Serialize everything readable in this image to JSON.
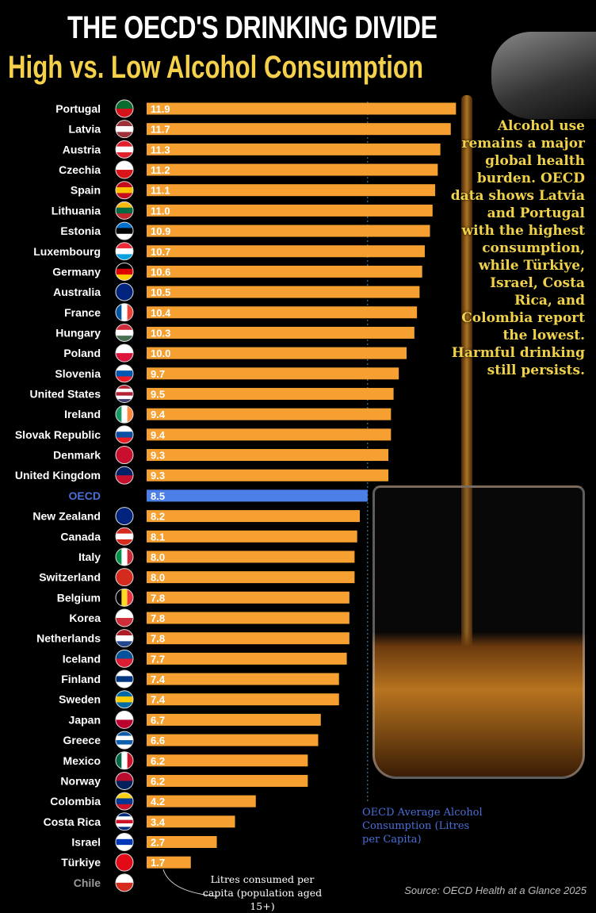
{
  "title": "THE OECD'S DRINKING DIVIDE",
  "subtitle": "High vs. Low Alcohol Consumption",
  "blurb": "Alcohol use remains a major global health burden. OECD data shows Latvia and Portugal with the highest consumption, while Türkiye, Israel, Costa Rica, and Colombia report the lowest. Harmful drinking still persists.",
  "avg_note": "OECD Average Alcohol Consumption (Litres per Capita)",
  "unit_note": "Litres consumed per capita (population aged 15+)",
  "source": "Source: OECD Health at a Glance 2025",
  "colors": {
    "bar": "#f5a030",
    "oecd_bar": "#4d7fe8",
    "oecd_label": "#4a6fd8",
    "missing_label": "#999999",
    "avg_line": "#3a7f9f"
  },
  "chart_data": {
    "type": "bar",
    "orientation": "horizontal",
    "xlabel": "Litres consumed per capita (population aged 15+)",
    "reference_line": {
      "label": "OECD Average Alcohol Consumption (Litres per Capita)",
      "value": 8.5
    },
    "categories": [
      "Portugal",
      "Latvia",
      "Austria",
      "Czechia",
      "Spain",
      "Lithuania",
      "Estonia",
      "Luxembourg",
      "Germany",
      "Australia",
      "France",
      "Hungary",
      "Poland",
      "Slovenia",
      "United States",
      "Ireland",
      "Slovak Republic",
      "Denmark",
      "United Kingdom",
      "OECD",
      "New Zealand",
      "Canada",
      "Italy",
      "Switzerland",
      "Belgium",
      "Korea",
      "Netherlands",
      "Iceland",
      "Finland",
      "Sweden",
      "Japan",
      "Greece",
      "Mexico",
      "Norway",
      "Colombia",
      "Costa Rica",
      "Israel",
      "Türkiye",
      "Chile"
    ],
    "values": [
      11.9,
      11.7,
      11.3,
      11.2,
      11.1,
      11.0,
      10.9,
      10.7,
      10.6,
      10.5,
      10.4,
      10.3,
      10.0,
      9.7,
      9.5,
      9.4,
      9.4,
      9.3,
      9.3,
      8.5,
      8.2,
      8.1,
      8.0,
      8.0,
      7.8,
      7.8,
      7.8,
      7.7,
      7.4,
      7.4,
      6.7,
      6.6,
      6.2,
      6.2,
      4.2,
      3.4,
      2.7,
      1.7,
      null
    ],
    "value_labels": [
      "11.9",
      "11.7",
      "11.3",
      "11.2",
      "11.1",
      "11.0",
      "10.9",
      "10.7",
      "10.6",
      "10.5",
      "10.4",
      "10.3",
      "10.0",
      "9.7",
      "9.5",
      "9.4",
      "9.4",
      "9.3",
      "9.3",
      "8.5",
      "8.2",
      "8.1",
      "8.0",
      "8.0",
      "7.8",
      "7.8",
      "7.8",
      "7.7",
      "7.4",
      "7.4",
      "6.7",
      "6.6",
      "6.2",
      "6.2",
      "4.2",
      "3.4",
      "2.7",
      "1.7",
      ""
    ]
  }
}
